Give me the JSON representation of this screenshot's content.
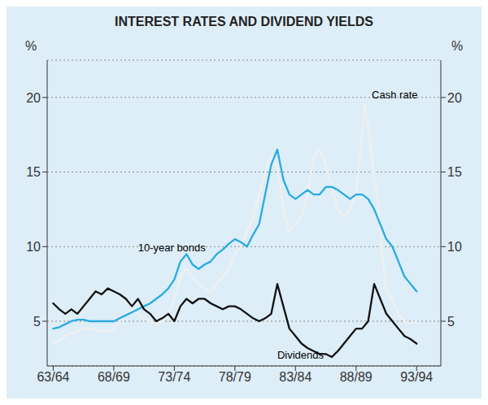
{
  "chart_data": {
    "type": "line",
    "title": "INTEREST RATES AND DIVIDEND YIELDS",
    "ylabel": "%",
    "y2label": "%",
    "xlim": [
      1963.0,
      1995.5
    ],
    "xticks": [
      {
        "value": 1963.5,
        "label": "63/64"
      },
      {
        "value": 1968.5,
        "label": "68/69"
      },
      {
        "value": 1973.5,
        "label": "73/74"
      },
      {
        "value": 1978.5,
        "label": "78/79"
      },
      {
        "value": 1983.5,
        "label": "83/84"
      },
      {
        "value": 1988.5,
        "label": "88/89"
      },
      {
        "value": 1993.5,
        "label": "93/94"
      }
    ],
    "ylim": [
      2.0,
      22.5
    ],
    "yticks": [
      5,
      10,
      15,
      20
    ],
    "y2lim": [
      2.0,
      22.5
    ],
    "y2ticks": [
      5,
      10,
      15,
      20
    ],
    "grid": true,
    "series": [
      {
        "color": "#f0f0f0",
        "x": [
          1963.5,
          1964.0,
          1964.5,
          1965.0,
          1965.5,
          1966.0,
          1966.5,
          1967.0,
          1967.5,
          1968.0,
          1968.5,
          1969.0,
          1969.5,
          1970.0,
          1970.5,
          1971.0,
          1971.5,
          1972.0,
          1972.5,
          1973.0,
          1973.5,
          1974.0,
          1974.5,
          1975.0,
          1975.5,
          1976.0,
          1976.5,
          1977.0,
          1977.5,
          1978.0,
          1978.5,
          1979.0,
          1979.5,
          1980.0,
          1980.5,
          1981.0,
          1981.5,
          1982.0,
          1982.5,
          1983.0,
          1983.5,
          1984.0,
          1984.5,
          1985.0,
          1985.5,
          1986.0,
          1986.5,
          1987.0,
          1987.5,
          1988.0,
          1988.5,
          1989.0,
          1989.2,
          1989.5,
          1989.8,
          1990.0,
          1990.3,
          1990.5,
          1990.8,
          1991.0,
          1991.5,
          1992.0,
          1992.5,
          1993.0,
          1993.5
        ],
        "values": [
          3.5,
          3.7,
          4.0,
          4.2,
          4.3,
          4.5,
          4.5,
          4.4,
          4.3,
          4.3,
          4.5,
          5.0,
          5.5,
          5.8,
          5.5,
          5.2,
          5.0,
          4.8,
          5.0,
          5.5,
          6.5,
          8.0,
          8.5,
          8.0,
          7.5,
          7.2,
          7.0,
          7.5,
          8.0,
          8.5,
          9.5,
          10.0,
          11.0,
          12.0,
          13.5,
          15.0,
          16.0,
          15.5,
          12.5,
          11.0,
          11.5,
          12.0,
          13.5,
          16.0,
          16.5,
          15.5,
          14.0,
          12.5,
          12.0,
          12.5,
          13.5,
          17.5,
          19.5,
          18.0,
          16.0,
          14.5,
          13.0,
          11.0,
          8.5,
          7.0,
          6.5,
          5.5,
          5.0,
          4.8,
          5.0
        ]
      },
      {
        "color": "#29abe2",
        "x": [
          1963.5,
          1964.0,
          1964.5,
          1965.0,
          1965.5,
          1966.0,
          1966.5,
          1967.0,
          1967.5,
          1968.0,
          1968.5,
          1969.0,
          1969.5,
          1970.0,
          1970.5,
          1971.0,
          1971.5,
          1972.0,
          1972.5,
          1973.0,
          1973.5,
          1974.0,
          1974.5,
          1975.0,
          1975.5,
          1976.0,
          1976.5,
          1977.0,
          1977.5,
          1978.0,
          1978.5,
          1979.0,
          1979.5,
          1980.0,
          1980.5,
          1981.0,
          1981.5,
          1982.0,
          1982.5,
          1983.0,
          1983.5,
          1984.0,
          1984.5,
          1985.0,
          1985.5,
          1986.0,
          1986.5,
          1987.0,
          1987.5,
          1988.0,
          1988.5,
          1989.0,
          1989.5,
          1990.0,
          1990.5,
          1991.0,
          1991.5,
          1992.0,
          1992.5,
          1993.0,
          1993.5
        ],
        "values": [
          4.5,
          4.6,
          4.8,
          5.0,
          5.1,
          5.1,
          5.0,
          5.0,
          5.0,
          5.0,
          5.0,
          5.2,
          5.4,
          5.6,
          5.8,
          6.0,
          6.2,
          6.5,
          6.8,
          7.2,
          7.8,
          9.0,
          9.5,
          8.8,
          8.5,
          8.8,
          9.0,
          9.5,
          9.8,
          10.2,
          10.5,
          10.3,
          10.0,
          10.8,
          11.5,
          13.5,
          15.5,
          16.5,
          14.5,
          13.5,
          13.2,
          13.5,
          13.8,
          13.5,
          13.5,
          14.0,
          14.0,
          13.8,
          13.5,
          13.2,
          13.5,
          13.5,
          13.2,
          12.5,
          11.5,
          10.5,
          10.0,
          9.0,
          8.0,
          7.5,
          7.0
        ]
      },
      {
        "color": "#111111",
        "x": [
          1963.5,
          1964.0,
          1964.5,
          1965.0,
          1965.5,
          1966.0,
          1966.5,
          1967.0,
          1967.5,
          1968.0,
          1968.5,
          1969.0,
          1969.5,
          1970.0,
          1970.5,
          1971.0,
          1971.5,
          1972.0,
          1972.5,
          1973.0,
          1973.5,
          1974.0,
          1974.5,
          1975.0,
          1975.5,
          1976.0,
          1976.5,
          1977.0,
          1977.5,
          1978.0,
          1978.5,
          1979.0,
          1979.5,
          1980.0,
          1980.5,
          1981.0,
          1981.5,
          1982.0,
          1982.5,
          1983.0,
          1983.5,
          1984.0,
          1984.5,
          1985.0,
          1985.5,
          1986.0,
          1986.5,
          1987.0,
          1987.5,
          1988.0,
          1988.5,
          1989.0,
          1989.5,
          1990.0,
          1990.5,
          1991.0,
          1991.5,
          1992.0,
          1992.5,
          1993.0,
          1993.5
        ],
        "values": [
          6.2,
          5.8,
          5.5,
          5.8,
          5.5,
          6.0,
          6.5,
          7.0,
          6.8,
          7.2,
          7.0,
          6.8,
          6.5,
          6.0,
          6.5,
          5.8,
          5.5,
          5.0,
          5.2,
          5.5,
          5.0,
          6.0,
          6.5,
          6.2,
          6.5,
          6.5,
          6.2,
          6.0,
          5.8,
          6.0,
          6.0,
          5.8,
          5.5,
          5.2,
          5.0,
          5.2,
          5.5,
          7.5,
          6.0,
          4.5,
          4.0,
          3.5,
          3.2,
          3.0,
          2.8,
          2.8,
          2.6,
          3.0,
          3.5,
          4.0,
          4.5,
          4.5,
          5.0,
          7.5,
          6.5,
          5.5,
          5.0,
          4.5,
          4.0,
          3.8,
          3.5
        ]
      }
    ],
    "annotations": [
      {
        "text": "10-year bonds",
        "x": 1970.5,
        "y": 9.5
      },
      {
        "text": "Cash rate",
        "x": 1989.8,
        "y": 19.8
      },
      {
        "text": "Dividends",
        "x": 1982.0,
        "y": 2.3
      }
    ]
  }
}
